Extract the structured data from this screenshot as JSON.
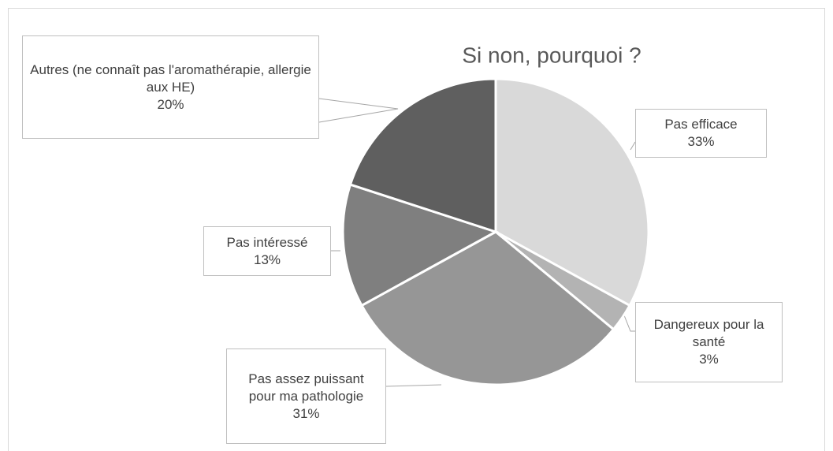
{
  "chart_data": {
    "type": "pie",
    "title": "Si non, pourquoi ?",
    "categories": [
      "Pas efficace",
      "Dangereux pour la santé",
      "Pas assez puissant pour ma pathologie",
      "Pas intéressé",
      "Autres (ne connaît pas l'aromathérapie, allergie aux HE)"
    ],
    "values": [
      33,
      3,
      31,
      13,
      20
    ],
    "value_labels": [
      "33%",
      "3%",
      "31%",
      "13%",
      "20%"
    ],
    "colors": [
      "#d9d9d9",
      "#b3b3b3",
      "#969696",
      "#7f7f7f",
      "#5f5f5f"
    ]
  }
}
